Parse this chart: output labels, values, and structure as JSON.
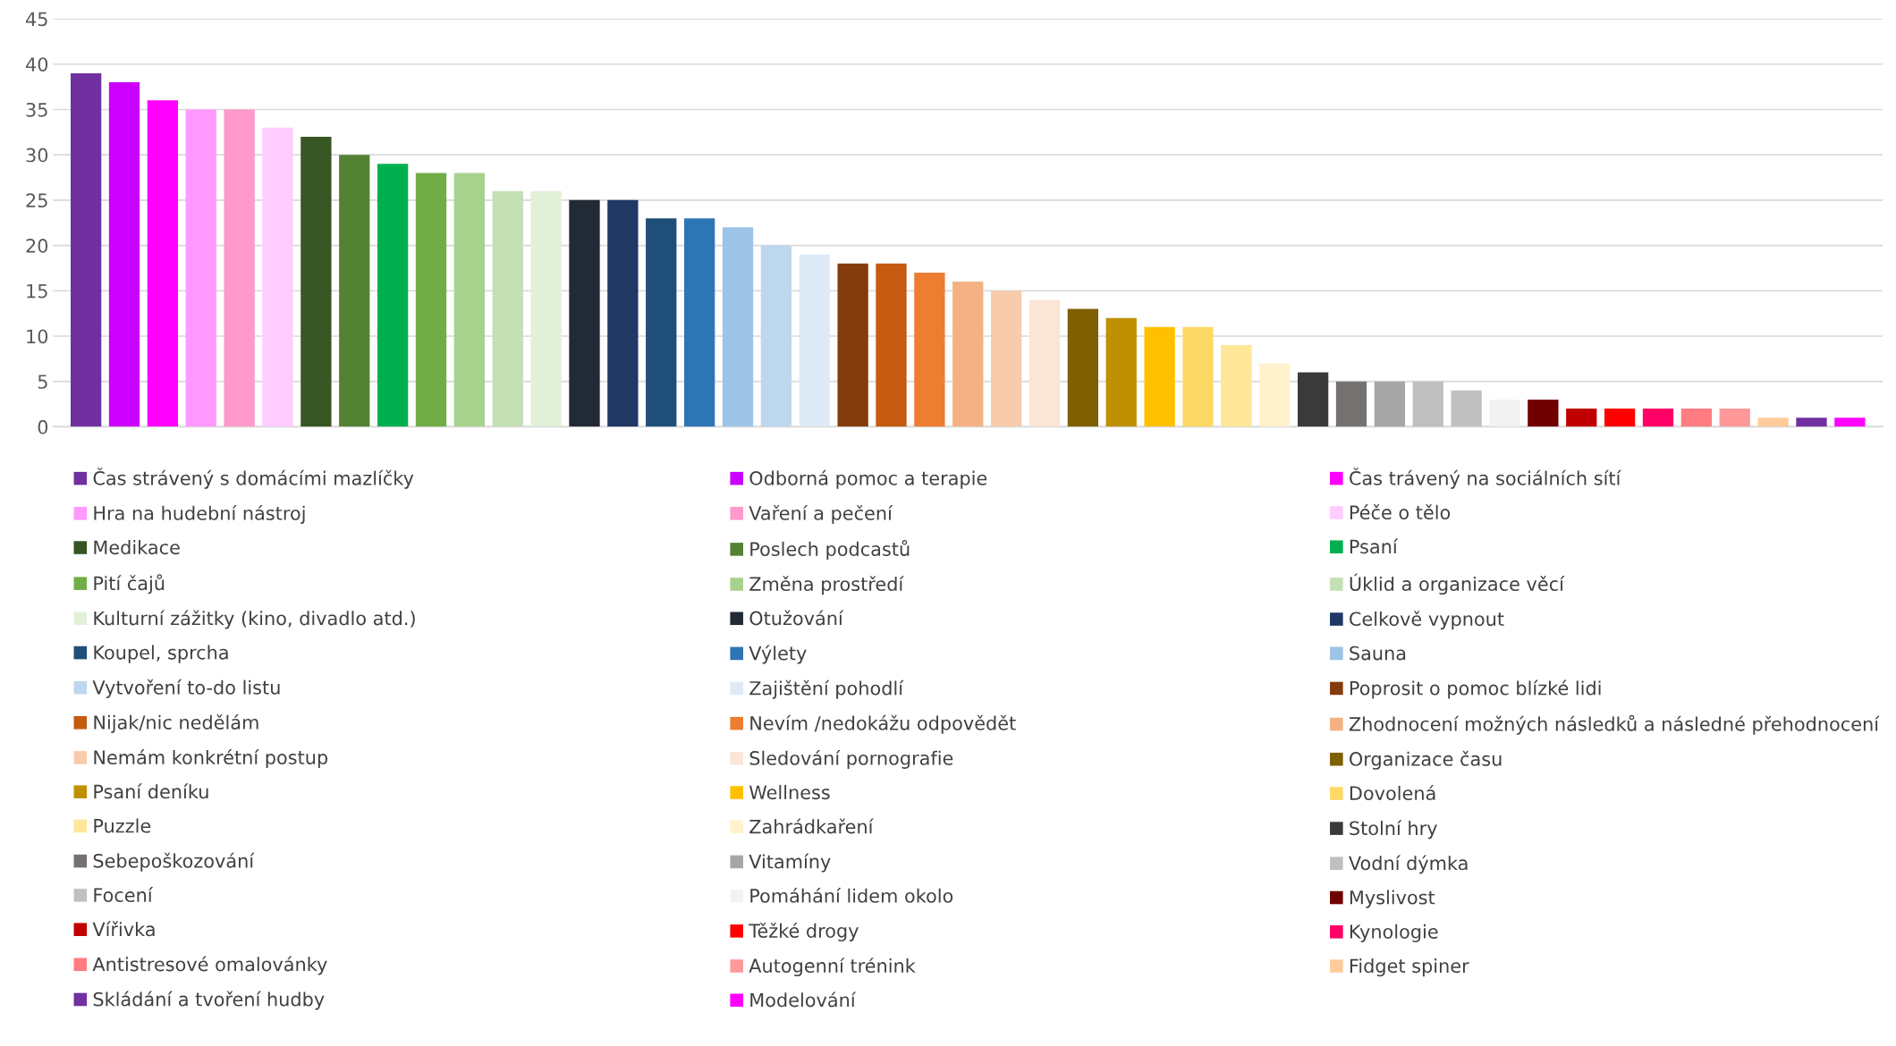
{
  "chart_data": {
    "type": "bar",
    "categories": [
      null
    ],
    "series": [
      {
        "name": "Čas strávený s domácími mazlíčky",
        "color": "#7030a0",
        "values": [
          39
        ]
      },
      {
        "name": "Odborná pomoc a terapie",
        "color": "#cc00ff",
        "values": [
          38
        ]
      },
      {
        "name": "Čas trávený na sociálních sítí",
        "color": "#ff00ff",
        "values": [
          36
        ]
      },
      {
        "name": "Hra na hudební nástroj",
        "color": "#ff99ff",
        "values": [
          35
        ]
      },
      {
        "name": "Vaření a pečení",
        "color": "#ff99cc",
        "values": [
          35
        ]
      },
      {
        "name": "Péče o tělo",
        "color": "#ffccff",
        "values": [
          33
        ]
      },
      {
        "name": "Medikace",
        "color": "#375623",
        "values": [
          32
        ]
      },
      {
        "name": "Poslech podcastů",
        "color": "#548235",
        "values": [
          30
        ]
      },
      {
        "name": "Psaní",
        "color": "#00b050",
        "values": [
          29
        ]
      },
      {
        "name": "Pití čajů",
        "color": "#70ad47",
        "values": [
          28
        ]
      },
      {
        "name": "Změna prostředí",
        "color": "#a9d18e",
        "values": [
          28
        ]
      },
      {
        "name": "Úklid a organizace věcí",
        "color": "#c5e0b4",
        "values": [
          26
        ]
      },
      {
        "name": "Kulturní zážitky (kino, divadlo atd.)",
        "color": "#e2f0d9",
        "values": [
          26
        ]
      },
      {
        "name": "Otužování",
        "color": "#222a35",
        "values": [
          25
        ]
      },
      {
        "name": "Celkově vypnout",
        "color": "#203864",
        "values": [
          25
        ]
      },
      {
        "name": "Koupel, sprcha",
        "color": "#1f4e79",
        "values": [
          23
        ]
      },
      {
        "name": "Výlety",
        "color": "#2e75b6",
        "values": [
          23
        ]
      },
      {
        "name": "Sauna",
        "color": "#9dc3e6",
        "values": [
          22
        ]
      },
      {
        "name": "Vytvoření to-do listu",
        "color": "#bdd7ee",
        "values": [
          20
        ]
      },
      {
        "name": "Zajištění pohodlí",
        "color": "#deebf7",
        "values": [
          19
        ]
      },
      {
        "name": "Poprosit o pomoc blízké lidi",
        "color": "#843c0c",
        "values": [
          18
        ]
      },
      {
        "name": "Nijak/nic nedělám",
        "color": "#c55a11",
        "values": [
          18
        ]
      },
      {
        "name": "Nevím /nedokážu odpovědět",
        "color": "#ed7d31",
        "values": [
          17
        ]
      },
      {
        "name": "Zhodnocení možných následků a následné přehodnocení",
        "color": "#f4b183",
        "values": [
          16
        ]
      },
      {
        "name": "Nemám konkrétní postup",
        "color": "#f8cbad",
        "values": [
          15
        ]
      },
      {
        "name": "Sledování pornografie",
        "color": "#fbe5d6",
        "values": [
          14
        ]
      },
      {
        "name": "Organizace času",
        "color": "#7f6000",
        "values": [
          13
        ]
      },
      {
        "name": "Psaní deníku",
        "color": "#bf9000",
        "values": [
          12
        ]
      },
      {
        "name": "Wellness",
        "color": "#ffc000",
        "values": [
          11
        ]
      },
      {
        "name": "Dovolená",
        "color": "#ffd966",
        "values": [
          11
        ]
      },
      {
        "name": "Puzzle",
        "color": "#ffe699",
        "values": [
          9
        ]
      },
      {
        "name": "Zahrádkaření",
        "color": "#fff2cc",
        "values": [
          7
        ]
      },
      {
        "name": "Stolní hry",
        "color": "#3a3a3a",
        "values": [
          6
        ]
      },
      {
        "name": "Sebepoškozování",
        "color": "#767171",
        "values": [
          5
        ]
      },
      {
        "name": "Vitamíny",
        "color": "#a6a6a6",
        "values": [
          5
        ]
      },
      {
        "name": "Vodní dýmka",
        "color": "#bfbfbf",
        "values": [
          5
        ]
      },
      {
        "name": "Focení",
        "color": "#c0c0c0",
        "values": [
          4
        ]
      },
      {
        "name": "Pomáhání lidem okolo",
        "color": "#f2f2f2",
        "values": [
          3
        ]
      },
      {
        "name": "Myslivost",
        "color": "#700000",
        "values": [
          3
        ]
      },
      {
        "name": "Vířivka",
        "color": "#c00000",
        "values": [
          2
        ]
      },
      {
        "name": "Těžké drogy",
        "color": "#ff0000",
        "values": [
          2
        ]
      },
      {
        "name": "Kynologie",
        "color": "#ff0066",
        "values": [
          2
        ]
      },
      {
        "name": "Antistresové omalovánky",
        "color": "#ff7c80",
        "values": [
          2
        ]
      },
      {
        "name": "Autogenní trénink",
        "color": "#ff9999",
        "values": [
          2
        ]
      },
      {
        "name": "Fidget spiner",
        "color": "#ffcc99",
        "values": [
          1
        ]
      },
      {
        "name": "Skládání a tvoření hudby",
        "color": "#7030a1",
        "values": [
          1
        ]
      },
      {
        "name": "Modelování",
        "color": "#ff00fe",
        "values": [
          1
        ]
      }
    ],
    "ylim": [
      0,
      45
    ],
    "yticks": [
      0,
      5,
      10,
      15,
      20,
      25,
      30,
      35,
      40,
      45
    ],
    "grid": "y",
    "legend": "bottom",
    "tick_labels": "y"
  }
}
